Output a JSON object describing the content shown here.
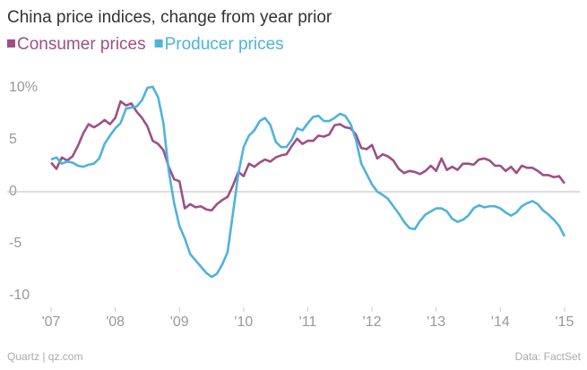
{
  "chart_data": {
    "type": "line",
    "title": "China price indices, change from year prior",
    "credit": "Quartz | qz.com",
    "source": "Data: FactSet",
    "x": [
      2007,
      2007.083,
      2007.167,
      2007.25,
      2007.333,
      2007.417,
      2007.5,
      2007.583,
      2007.667,
      2007.75,
      2007.833,
      2007.917,
      2008,
      2008.083,
      2008.167,
      2008.25,
      2008.333,
      2008.417,
      2008.5,
      2008.583,
      2008.667,
      2008.75,
      2008.833,
      2008.917,
      2009,
      2009.083,
      2009.167,
      2009.25,
      2009.333,
      2009.417,
      2009.5,
      2009.583,
      2009.667,
      2009.75,
      2009.833,
      2009.917,
      2010,
      2010.083,
      2010.167,
      2010.25,
      2010.333,
      2010.417,
      2010.5,
      2010.583,
      2010.667,
      2010.75,
      2010.833,
      2010.917,
      2011,
      2011.083,
      2011.167,
      2011.25,
      2011.333,
      2011.417,
      2011.5,
      2011.583,
      2011.667,
      2011.75,
      2011.833,
      2011.917,
      2012,
      2012.083,
      2012.167,
      2012.25,
      2012.333,
      2012.417,
      2012.5,
      2012.583,
      2012.667,
      2012.75,
      2012.833,
      2012.917,
      2013,
      2013.083,
      2013.167,
      2013.25,
      2013.333,
      2013.417,
      2013.5,
      2013.583,
      2013.667,
      2013.75,
      2013.833,
      2013.917,
      2014,
      2014.083,
      2014.167,
      2014.25,
      2014.333,
      2014.417,
      2014.5,
      2014.583,
      2014.667,
      2014.75,
      2014.833,
      2014.917,
      2015
    ],
    "series": [
      {
        "name": "Consumer prices",
        "color": "#9e4f86",
        "values": [
          2.8,
          2.2,
          3.3,
          3.0,
          3.4,
          4.4,
          5.6,
          6.5,
          6.2,
          6.5,
          6.9,
          6.5,
          7.1,
          8.7,
          8.3,
          8.5,
          7.7,
          7.1,
          6.3,
          4.9,
          4.6,
          4.0,
          2.4,
          1.2,
          1.0,
          -1.6,
          -1.2,
          -1.5,
          -1.4,
          -1.7,
          -1.8,
          -1.2,
          -0.8,
          -0.5,
          0.6,
          1.9,
          1.5,
          2.7,
          2.4,
          2.8,
          3.1,
          2.9,
          3.3,
          3.5,
          3.6,
          4.4,
          5.1,
          4.6,
          4.9,
          4.9,
          5.4,
          5.3,
          5.5,
          6.4,
          6.5,
          6.2,
          6.1,
          5.5,
          4.2,
          4.1,
          4.5,
          3.2,
          3.6,
          3.4,
          3.0,
          2.2,
          1.8,
          2.0,
          1.9,
          1.7,
          2.0,
          2.5,
          2.0,
          3.2,
          2.1,
          2.4,
          2.1,
          2.7,
          2.7,
          2.6,
          3.1,
          3.2,
          3.0,
          2.5,
          2.5,
          2.0,
          2.4,
          1.8,
          2.5,
          2.3,
          2.3,
          2.0,
          1.6,
          1.6,
          1.4,
          1.5,
          0.8
        ]
      },
      {
        "name": "Producer prices",
        "color": "#4fb3da",
        "values": [
          3.1,
          3.3,
          2.7,
          2.9,
          2.8,
          2.5,
          2.4,
          2.6,
          2.7,
          3.2,
          4.6,
          5.4,
          6.1,
          6.6,
          8.0,
          8.1,
          8.2,
          8.8,
          10.0,
          10.1,
          9.1,
          6.6,
          2.0,
          -1.1,
          -3.3,
          -4.5,
          -6.0,
          -6.6,
          -7.2,
          -7.8,
          -8.2,
          -7.9,
          -7.0,
          -5.8,
          -2.1,
          1.7,
          4.3,
          5.4,
          5.9,
          6.8,
          7.1,
          6.4,
          4.8,
          4.3,
          4.3,
          5.0,
          6.1,
          5.9,
          6.6,
          7.2,
          7.3,
          6.8,
          6.8,
          7.1,
          7.5,
          7.3,
          6.5,
          5.0,
          2.7,
          1.7,
          0.7,
          0.0,
          -0.3,
          -0.7,
          -1.4,
          -2.1,
          -2.9,
          -3.5,
          -3.6,
          -2.8,
          -2.2,
          -1.9,
          -1.6,
          -1.6,
          -1.9,
          -2.6,
          -2.9,
          -2.7,
          -2.3,
          -1.6,
          -1.3,
          -1.5,
          -1.4,
          -1.4,
          -1.6,
          -2.0,
          -2.3,
          -2.0,
          -1.4,
          -1.1,
          -0.9,
          -1.2,
          -1.8,
          -2.2,
          -2.7,
          -3.3,
          -4.3
        ]
      }
    ],
    "xlim": [
      2006.86,
      2015.35
    ],
    "xticks": [
      {
        "value": 2007,
        "label": "'07"
      },
      {
        "value": 2008,
        "label": "'08"
      },
      {
        "value": 2009,
        "label": "'09"
      },
      {
        "value": 2010,
        "label": "'10"
      },
      {
        "value": 2011,
        "label": "'11"
      },
      {
        "value": 2012,
        "label": "'12"
      },
      {
        "value": 2013,
        "label": "'13"
      },
      {
        "value": 2014,
        "label": "'14"
      },
      {
        "value": 2015,
        "label": "'15"
      }
    ],
    "ylim": [
      -11.5,
      11
    ],
    "yticks": [
      {
        "value": 10,
        "label": "10%"
      },
      5,
      0,
      -5,
      -10
    ],
    "grid": false
  }
}
